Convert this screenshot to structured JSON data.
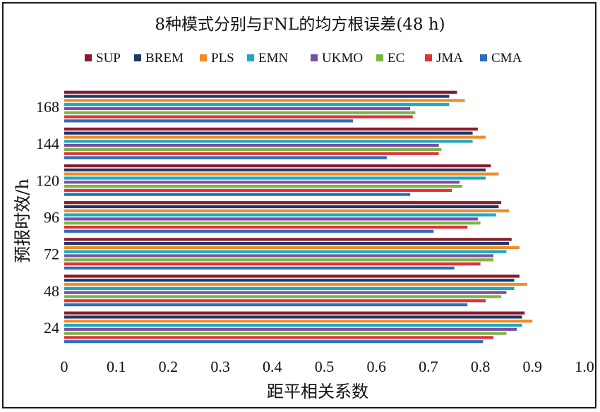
{
  "chart_data": {
    "type": "bar",
    "orientation": "horizontal",
    "title": "8种模式分别与FNL的均方根误差(48 h)",
    "xlabel": "距平相关系数",
    "ylabel": "预报时效/h",
    "xlim": [
      0,
      1.0
    ],
    "xticks": [
      "0",
      "0.1",
      "0.2",
      "0.3",
      "0.4",
      "0.5",
      "0.6",
      "0.7",
      "0.8",
      "0.9",
      "1.0"
    ],
    "categories": [
      "24",
      "48",
      "72",
      "96",
      "120",
      "144",
      "168"
    ],
    "legend_position": "top",
    "grid": false,
    "series": [
      {
        "name": "SUP",
        "color": "#8B1A2B",
        "values": [
          0.885,
          0.875,
          0.86,
          0.84,
          0.82,
          0.795,
          0.755
        ]
      },
      {
        "name": "BREM",
        "color": "#1F3864",
        "values": [
          0.88,
          0.865,
          0.855,
          0.835,
          0.81,
          0.785,
          0.74
        ]
      },
      {
        "name": "PLS",
        "color": "#F28C28",
        "values": [
          0.9,
          0.89,
          0.875,
          0.855,
          0.835,
          0.81,
          0.77
        ]
      },
      {
        "name": "EMN",
        "color": "#1BA8C4",
        "values": [
          0.88,
          0.865,
          0.85,
          0.83,
          0.81,
          0.785,
          0.74
        ]
      },
      {
        "name": "UKMO",
        "color": "#7B4FA0",
        "values": [
          0.87,
          0.85,
          0.825,
          0.795,
          0.76,
          0.72,
          0.665
        ]
      },
      {
        "name": "EC",
        "color": "#7DB544",
        "values": [
          0.85,
          0.84,
          0.825,
          0.8,
          0.765,
          0.725,
          0.675
        ]
      },
      {
        "name": "JMA",
        "color": "#E0313E",
        "values": [
          0.825,
          0.81,
          0.8,
          0.775,
          0.745,
          0.72,
          0.67
        ]
      },
      {
        "name": "CMA",
        "color": "#2A6EB5",
        "values": [
          0.805,
          0.775,
          0.75,
          0.71,
          0.665,
          0.62,
          0.555
        ]
      }
    ]
  }
}
